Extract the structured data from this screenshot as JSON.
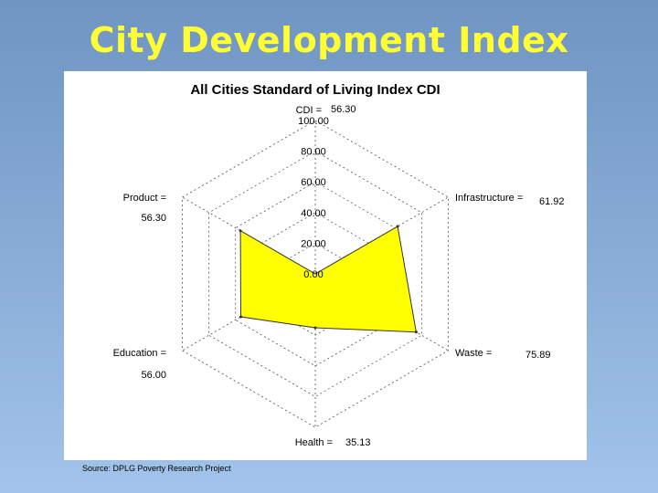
{
  "slide": {
    "title": "City Development Index",
    "source": "Source: DPLG Poverty Research Project"
  },
  "colors": {
    "fill": "#ffff00",
    "stroke": "#333333",
    "title": "#ffff33"
  },
  "chart_data": {
    "type": "radar",
    "title": "All Cities Standard of Living Index CDI",
    "overall_label": "CDI =",
    "overall_value": "56.30",
    "rmax": 100,
    "ticks": [
      "100.00",
      "80.00",
      "60.00",
      "40.00",
      "20.00",
      "0.00"
    ],
    "axes": [
      {
        "name": "Infrastructure =",
        "value": 61.92,
        "value_label": "61.92"
      },
      {
        "name": "Waste =",
        "value": 75.89,
        "value_label": "75.89"
      },
      {
        "name": "Health =",
        "value": 35.13,
        "value_label": "35.13"
      },
      {
        "name": "Education =",
        "value": 56.0,
        "value_label": "56.00"
      },
      {
        "name": "Product =",
        "value": 56.3,
        "value_label": "56.30"
      }
    ],
    "grid": true
  }
}
